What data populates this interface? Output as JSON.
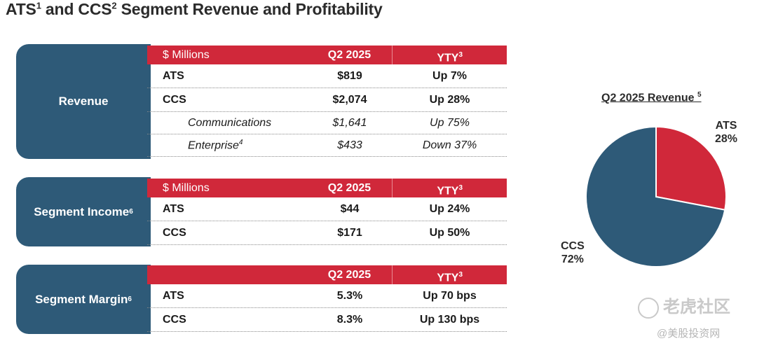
{
  "title": {
    "text": "ATS",
    "sup1": "1",
    "mid": " and CCS",
    "sup2": "2",
    "rest": " Segment Revenue and Profitability"
  },
  "sections": [
    {
      "label": "Revenue",
      "label_sup": "",
      "header": {
        "col1": "$ Millions",
        "col2": "Q2 2025",
        "col3": "YTY",
        "col3_sup": "3"
      },
      "rows": [
        {
          "name": "ATS",
          "name_sup": "",
          "q2": "$819",
          "yty": "Up 7%",
          "sub": false
        },
        {
          "name": "CCS",
          "name_sup": "",
          "q2": "$2,074",
          "yty": "Up 28%",
          "sub": false
        },
        {
          "name": "Communications",
          "name_sup": "",
          "q2": "$1,641",
          "yty": "Up 75%",
          "sub": true
        },
        {
          "name": "Enterprise",
          "name_sup": "4",
          "q2": "$433",
          "yty": "Down 37%",
          "sub": true
        }
      ]
    },
    {
      "label": "Segment Income",
      "label_sup": "6",
      "header": {
        "col1": "$ Millions",
        "col2": "Q2 2025",
        "col3": "YTY",
        "col3_sup": "3"
      },
      "rows": [
        {
          "name": "ATS",
          "name_sup": "",
          "q2": "$44",
          "yty": "Up 24%",
          "sub": false
        },
        {
          "name": "CCS",
          "name_sup": "",
          "q2": "$171",
          "yty": "Up 50%",
          "sub": false
        }
      ]
    },
    {
      "label": "Segment Margin",
      "label_sup": "6",
      "header": {
        "col1": "",
        "col2": "Q2 2025",
        "col3": "YTY",
        "col3_sup": "3"
      },
      "rows": [
        {
          "name": "ATS",
          "name_sup": "",
          "q2": "5.3%",
          "yty": "Up 70 bps",
          "sub": false
        },
        {
          "name": "CCS",
          "name_sup": "",
          "q2": "8.3%",
          "yty": "Up 130 bps",
          "sub": false
        }
      ]
    }
  ],
  "chart_data": {
    "type": "pie",
    "title": "Q2 2025 Revenue",
    "title_sup": "5",
    "categories": [
      "ATS",
      "CCS"
    ],
    "values": [
      28,
      72
    ],
    "value_labels": [
      "28%",
      "72%"
    ],
    "colors": [
      "#d0283a",
      "#2e5a78"
    ]
  },
  "watermark": {
    "line1": "老虎社区",
    "line2": "@美股投资网"
  }
}
